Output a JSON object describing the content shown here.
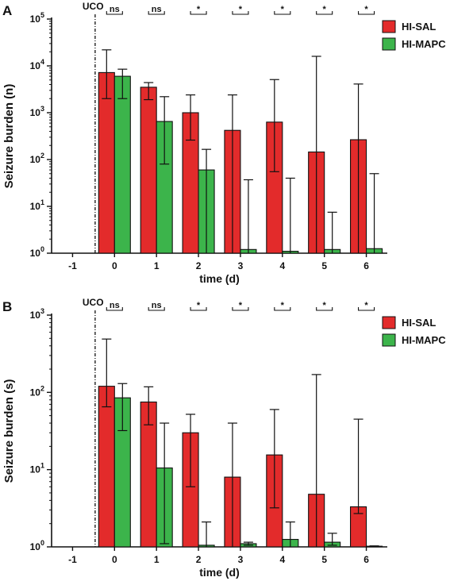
{
  "chart_data": [
    {
      "panel_label": "A",
      "type": "bar",
      "ylabel": "Seizure burden (n)",
      "xlabel": "time (d)",
      "yscale": "log",
      "ylim": [
        1,
        100000
      ],
      "categories": [
        "-1",
        "0",
        "1",
        "2",
        "3",
        "4",
        "5",
        "6"
      ],
      "event_marker": {
        "label": "UCO",
        "at": "between -1 and 0"
      },
      "legend": {
        "placement": "top-right"
      },
      "series": [
        {
          "name": "HI-SAL",
          "color": "#e32b2b",
          "values": [
            null,
            7200,
            3500,
            1000,
            420,
            630,
            145,
            265
          ],
          "error_low": [
            null,
            2000,
            1900,
            260,
            1,
            55,
            1,
            1
          ],
          "error_high": [
            null,
            22000,
            4400,
            2400,
            2400,
            5100,
            16000,
            4100
          ]
        },
        {
          "name": "HI-MAPC",
          "color": "#3cb44b",
          "values": [
            null,
            6000,
            650,
            60,
            1.2,
            1.1,
            1.2,
            1.25
          ],
          "error_low": [
            null,
            2000,
            80,
            1,
            1,
            1,
            1,
            1
          ],
          "error_high": [
            null,
            8500,
            2200,
            165,
            37,
            40,
            7.5,
            50
          ]
        }
      ],
      "significance": [
        "",
        "ns",
        "ns",
        "*",
        "*",
        "*",
        "*",
        "*"
      ]
    },
    {
      "panel_label": "B",
      "type": "bar",
      "ylabel": "Seizure burden (s)",
      "xlabel": "time (d)",
      "yscale": "log",
      "ylim": [
        1,
        1000
      ],
      "categories": [
        "-1",
        "0",
        "1",
        "2",
        "3",
        "4",
        "5",
        "6"
      ],
      "event_marker": {
        "label": "UCO",
        "at": "between -1 and 0"
      },
      "legend": {
        "placement": "top-right"
      },
      "series": [
        {
          "name": "HI-SAL",
          "color": "#e32b2b",
          "values": [
            null,
            120,
            75,
            30,
            8,
            15.5,
            4.8,
            3.3
          ],
          "error_low": [
            null,
            65,
            38,
            6,
            1,
            3.2,
            1,
            2.7
          ],
          "error_high": [
            null,
            490,
            118,
            52,
            40,
            60,
            170,
            45
          ]
        },
        {
          "name": "HI-MAPC",
          "color": "#3cb44b",
          "values": [
            null,
            85,
            10.5,
            1.05,
            1.1,
            1.25,
            1.15,
            1.02
          ],
          "error_low": [
            null,
            32,
            1.1,
            1,
            1.05,
            1,
            1.05,
            1
          ],
          "error_high": [
            null,
            130,
            40,
            2.1,
            1.15,
            2.1,
            1.5,
            1.03
          ]
        }
      ],
      "significance": [
        "",
        "ns",
        "ns",
        "*",
        "*",
        "*",
        "*",
        "*"
      ]
    }
  ]
}
